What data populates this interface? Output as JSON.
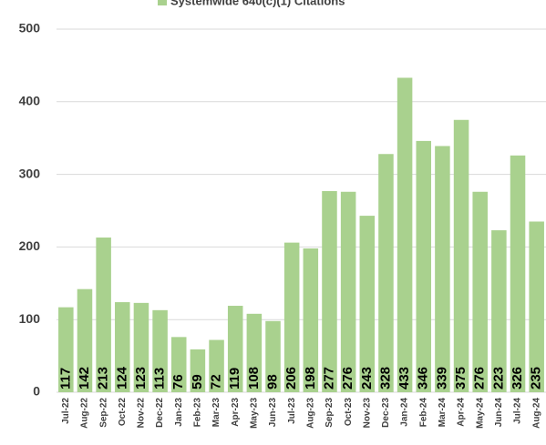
{
  "chart_data": {
    "type": "bar",
    "legend": "Systemwide 640(c)(1) Citations",
    "categories": [
      "Jul-22",
      "Aug-22",
      "Sep-22",
      "Oct-22",
      "Nov-22",
      "Dec-22",
      "Jan-23",
      "Feb-23",
      "Mar-23",
      "Apr-23",
      "May-23",
      "Jun-23",
      "Jul-23",
      "Aug-23",
      "Sep-23",
      "Oct-23",
      "Nov-23",
      "Dec-23",
      "Jan-24",
      "Feb-24",
      "Mar-24",
      "Apr-24",
      "May-24",
      "Jun-24",
      "Jul-24",
      "Aug-24"
    ],
    "values": [
      117,
      142,
      213,
      124,
      123,
      113,
      76,
      59,
      72,
      119,
      108,
      98,
      206,
      198,
      277,
      276,
      243,
      328,
      433,
      346,
      339,
      375,
      276,
      223,
      326,
      235
    ],
    "color": "#a9d18e",
    "ylim": [
      0,
      500
    ],
    "yticks": [
      0,
      100,
      200,
      300,
      400,
      500
    ],
    "grid": true
  }
}
